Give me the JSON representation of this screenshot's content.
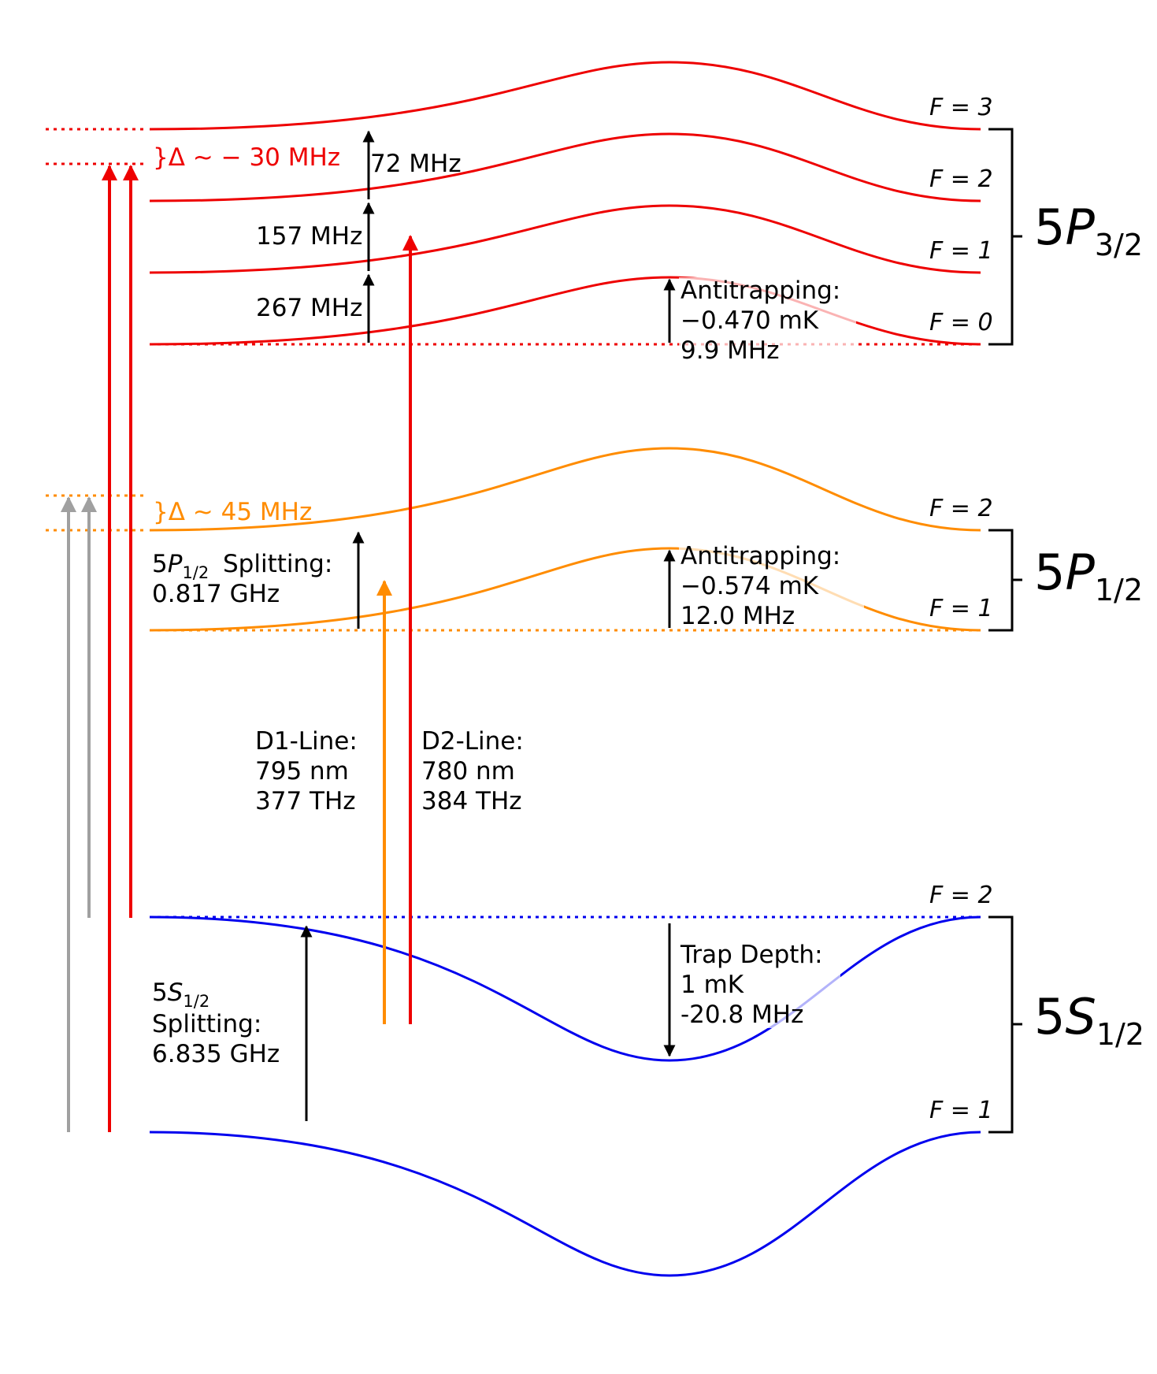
{
  "colors": {
    "p32": "#ee0000",
    "p12": "#ff8c00",
    "s12": "#0000ee",
    "gray": "#a0a0a0",
    "black": "#000000"
  },
  "p32": {
    "levels": [
      {
        "f_label": "F = 3"
      },
      {
        "f_label": "F = 2"
      },
      {
        "f_label": "F = 1"
      },
      {
        "f_label": "F = 0"
      }
    ],
    "spacings": [
      "72 MHz",
      "157 MHz",
      "267 MHz"
    ],
    "detuning": "}Δ ~ − 30 MHz",
    "antitrap": [
      "Antitrapping:",
      "−0.470 mK",
      "9.9 MHz"
    ],
    "term": {
      "n": "5",
      "letter": "P",
      "j": "3/2"
    }
  },
  "p12": {
    "levels": [
      {
        "f_label": "F = 2"
      },
      {
        "f_label": "F = 1"
      }
    ],
    "detuning": "}Δ ~ 45 MHz",
    "splitting": [
      "Splitting:",
      "0.817 GHz"
    ],
    "antitrap": [
      "Antitrapping:",
      "−0.574 mK",
      "12.0 MHz"
    ],
    "term": {
      "n": "5",
      "letter": "P",
      "j": "1/2"
    }
  },
  "s12": {
    "levels": [
      {
        "f_label": "F = 2"
      },
      {
        "f_label": "F = 1"
      }
    ],
    "splitting": [
      "Splitting:",
      "6.835 GHz"
    ],
    "trap": [
      "Trap Depth:",
      "1 mK",
      "-20.8 MHz"
    ],
    "term": {
      "n": "5",
      "letter": "S",
      "j": "1/2"
    }
  },
  "d1_line": [
    "D1-Line:",
    "795 nm",
    "377 THz"
  ],
  "d2_line": [
    "D2-Line:",
    "780 nm",
    "384 THz"
  ]
}
